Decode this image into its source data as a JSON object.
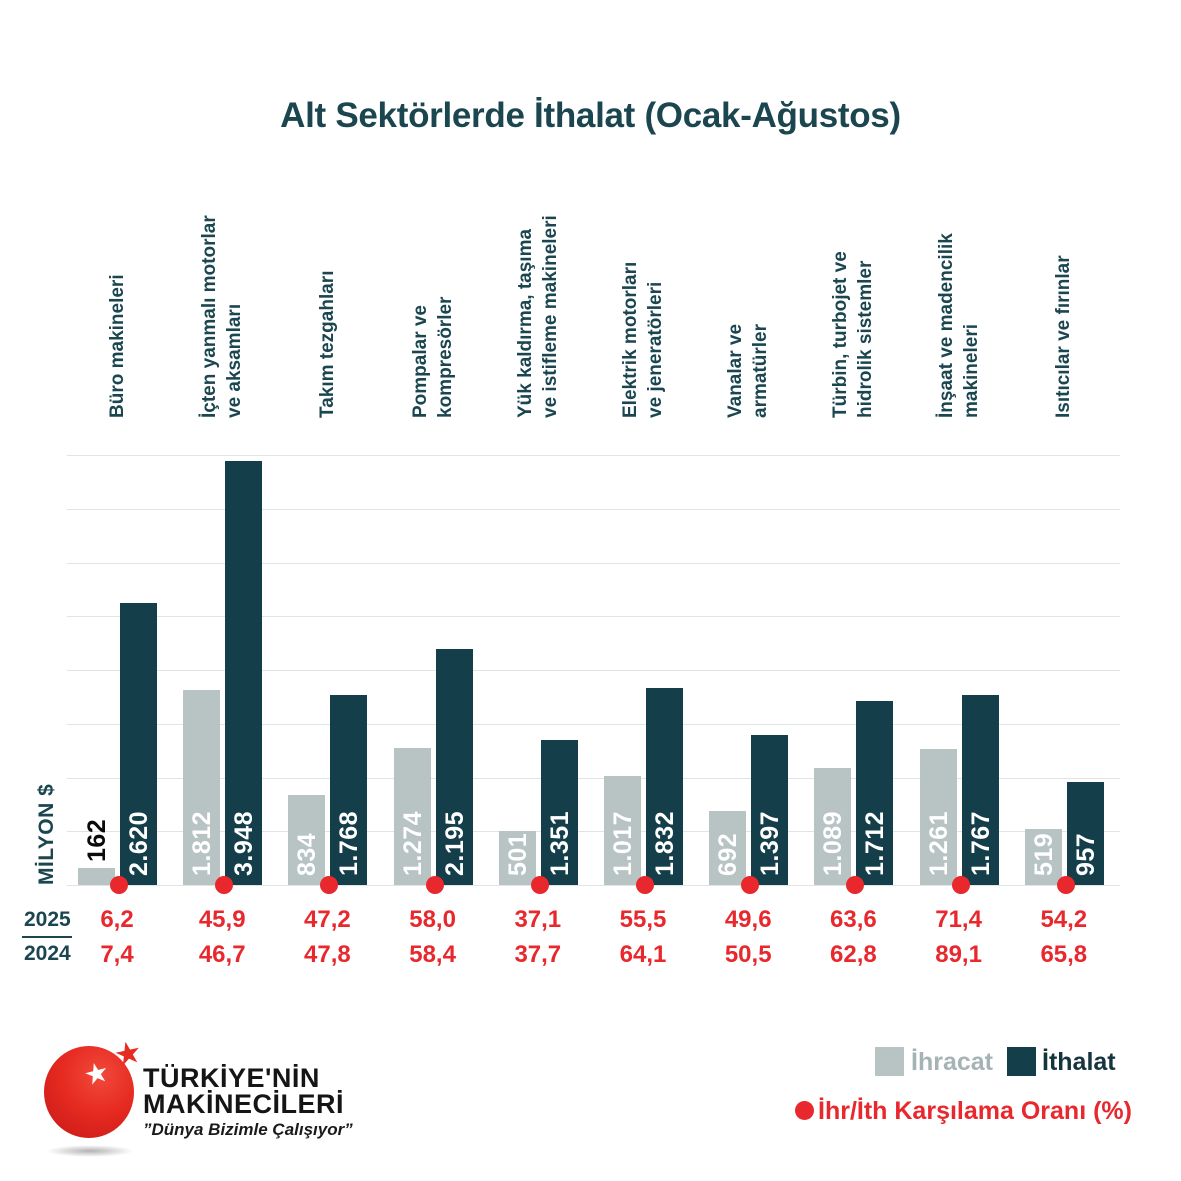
{
  "title": "Alt Sektörlerde İthalat (Ocak-Ağustos)",
  "y_axis_label": "MİLYON $",
  "colors": {
    "export_bar": "#b8c3c4",
    "import_bar": "#133e4a",
    "accent_red": "#e8282d",
    "teal_text": "#1b4650",
    "grid": "#e0e4e4",
    "outside_label": "#0a0a0a",
    "legend_export_text": "#a6b3b5",
    "legend_import_text": "#16343e"
  },
  "chart_data": {
    "type": "bar",
    "title": "Alt Sektörlerde İthalat (Ocak-Ağustos)",
    "ylabel": "MİLYON $",
    "ylim": [
      0,
      4000
    ],
    "gridline_step": 500,
    "grid": true,
    "legend_position": "bottom-right",
    "categories": [
      "Büro makineleri",
      "İçten yanmalı motorlar ve aksamları",
      "Takım tezgahları",
      "Pompalar ve kompresörler",
      "Yük kaldırma, taşıma ve istifleme makineleri",
      "Elektrik motorları ve jeneratörleri",
      "Vanalar ve armatürler",
      "Türbin, turbojet ve hidrolik sistemler",
      "İnşaat ve madencilik makineleri",
      "Isıtıcılar ve fırınlar"
    ],
    "category_lines": [
      [
        "Büro makineleri"
      ],
      [
        "İçten yanmalı motorlar",
        "ve aksamları"
      ],
      [
        "Takım tezgahları"
      ],
      [
        "Pompalar ve",
        "kompresörler"
      ],
      [
        "Yük kaldırma, taşıma",
        "ve istifleme makineleri"
      ],
      [
        "Elektrik motorları",
        "ve jeneratörleri"
      ],
      [
        "Vanalar ve",
        "armatürler"
      ],
      [
        "Türbin, turbojet ve",
        "hidrolik sistemler"
      ],
      [
        "İnşaat ve madencilik",
        "makineleri"
      ],
      [
        "Isıtıcılar ve fırınlar"
      ]
    ],
    "series": [
      {
        "name": "İhracat",
        "values": [
          162,
          1812,
          834,
          1274,
          501,
          1017,
          692,
          1089,
          1261,
          519
        ],
        "labels": [
          "162",
          "1.812",
          "834",
          "1.274",
          "501",
          "1.017",
          "692",
          "1.089",
          "1.261",
          "519"
        ]
      },
      {
        "name": "İthalat",
        "values": [
          2620,
          3948,
          1768,
          2195,
          1351,
          1832,
          1397,
          1712,
          1767,
          957
        ],
        "labels": [
          "2.620",
          "3.948",
          "1.768",
          "2.195",
          "1.351",
          "1.832",
          "1.397",
          "1.712",
          "1.767",
          "957"
        ]
      }
    ],
    "ratio": {
      "name": "İhr/İth Karşılama Oranı (%)",
      "row_2025": [
        "6,2",
        "45,9",
        "47,2",
        "58,0",
        "37,1",
        "55,5",
        "49,6",
        "63,6",
        "71,4",
        "54,2"
      ],
      "row_2024": [
        "7,4",
        "46,7",
        "47,8",
        "58,4",
        "37,7",
        "64,1",
        "50,5",
        "62,8",
        "89,1",
        "65,8"
      ]
    }
  },
  "table": {
    "row1_label": "2025",
    "row2_label": "2024"
  },
  "legend": {
    "export_label": "İhracat",
    "import_label": "İthalat",
    "ratio_label": "İhr/İth Karşılama Oranı (%)"
  },
  "logo": {
    "line1": "TÜRKİYE'NİN",
    "line2": "MAKİNECİLERİ",
    "slogan": "”Dünya Bizimle Çalışıyor”",
    "star": "★"
  }
}
